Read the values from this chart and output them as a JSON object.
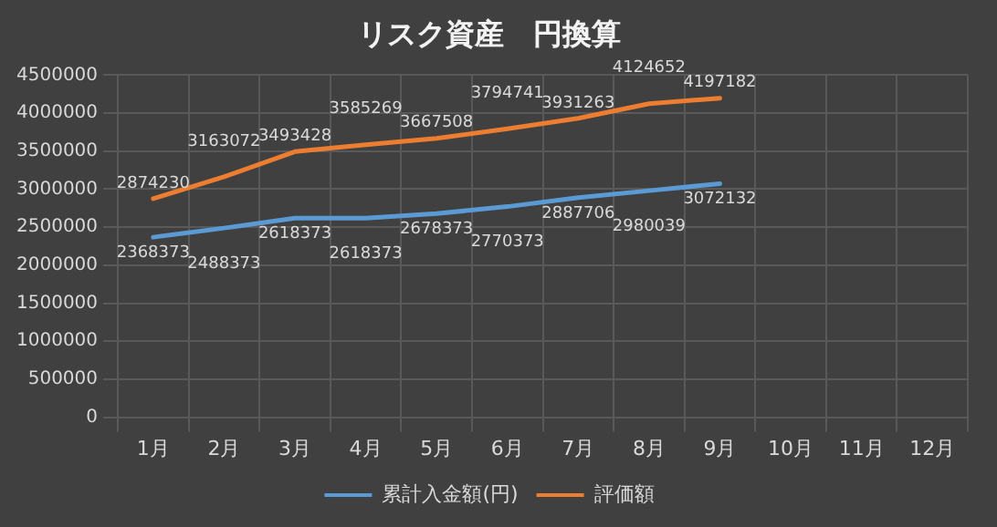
{
  "chart_data": {
    "type": "line",
    "title": "リスク資産　円換算",
    "categories": [
      "1月",
      "2月",
      "3月",
      "4月",
      "5月",
      "6月",
      "7月",
      "8月",
      "9月",
      "10月",
      "11月",
      "12月"
    ],
    "series": [
      {
        "name": "累計入金額(円)",
        "color": "#5b9bd5",
        "values": [
          2368373,
          2488373,
          2618373,
          2618373,
          2678373,
          2770373,
          2887706,
          2980039,
          3072132,
          null,
          null,
          null
        ]
      },
      {
        "name": "評価額",
        "color": "#ed7d31",
        "values": [
          2874230,
          3163072,
          3493428,
          3585269,
          3667508,
          3794741,
          3931263,
          4124652,
          4197182,
          null,
          null,
          null
        ]
      }
    ],
    "ylim": [
      0,
      4500000
    ],
    "yticks": [
      0,
      500000,
      1000000,
      1500000,
      2000000,
      2500000,
      3000000,
      3500000,
      4000000,
      4500000
    ],
    "grid": true,
    "legend": "bottom",
    "data_labels": true,
    "marker": "none",
    "line_style": "solid"
  }
}
